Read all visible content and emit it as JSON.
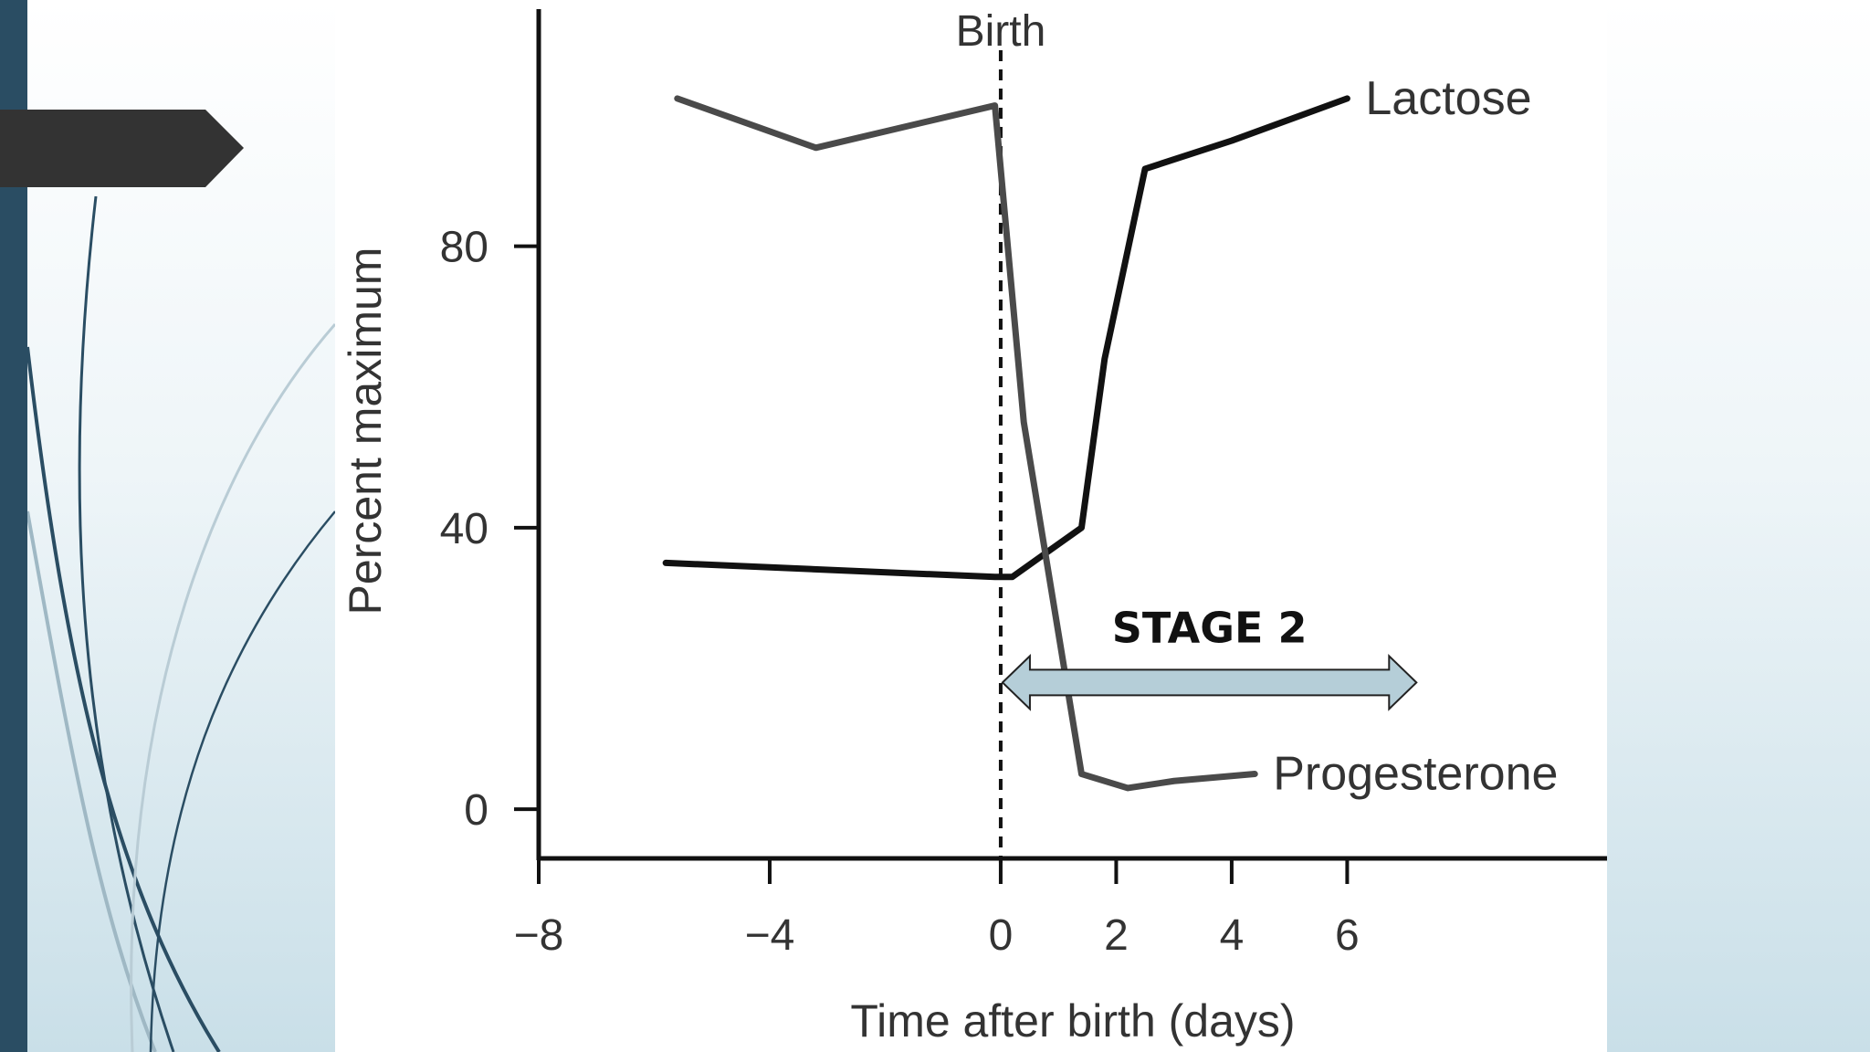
{
  "slide": {
    "accent_color": "#2a4d63",
    "tab_color": "#333333",
    "curve_colors": [
      "#2a4d63",
      "#9fb8c4",
      "#b9ccd5"
    ]
  },
  "chart_data": {
    "type": "line",
    "title": "",
    "xlabel": "Time after birth (days)",
    "ylabel": "Percent maximum",
    "xlim": [
      -8,
      10.5
    ],
    "ylim": [
      -7,
      115
    ],
    "x_ticks": [
      -8,
      -4,
      0,
      2,
      4,
      6
    ],
    "x_tick_labels": [
      "−8",
      "−4",
      "0",
      "2",
      "4",
      "6"
    ],
    "y_ticks": [
      0,
      40,
      80
    ],
    "y_tick_labels": [
      "0",
      "40",
      "80"
    ],
    "grid": false,
    "series": [
      {
        "name": "Lactose",
        "color": "#111111",
        "x": [
          -5.8,
          -0.1,
          0.2,
          1.4,
          1.8,
          2.5,
          4.0,
          6.0
        ],
        "y": [
          35,
          33,
          33,
          40,
          64,
          91,
          95,
          101
        ]
      },
      {
        "name": "Progesterone",
        "color": "#4a4a4a",
        "x": [
          -5.6,
          -3.2,
          -0.1,
          0.4,
          1.4,
          2.2,
          3.0,
          4.4
        ],
        "y": [
          101,
          94,
          100,
          55,
          5,
          3,
          4,
          5
        ]
      }
    ],
    "annotations": {
      "birth_label": "Birth",
      "birth_x": 0,
      "stage_label": "STAGE 2",
      "stage_arrow_x": [
        0,
        7.2
      ],
      "stage_arrow_y": 18,
      "stage_arrow_color": "#b5ced8"
    }
  }
}
